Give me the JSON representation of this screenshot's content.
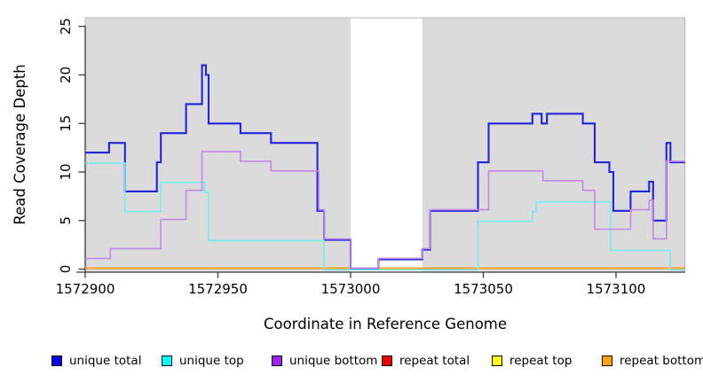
{
  "chart_data": {
    "type": "line",
    "subtype": "step-coverage",
    "title": "",
    "xlabel": "Coordinate in Reference Genome",
    "ylabel": "Read Coverage Depth",
    "xlim": [
      1572900,
      1573126
    ],
    "ylim": [
      0,
      26
    ],
    "grid": false,
    "x_ticks": [
      1572900,
      1572950,
      1573000,
      1573050,
      1573100
    ],
    "y_ticks": [
      0,
      5,
      10,
      15,
      20,
      25
    ],
    "plot_bg_color": "#dbdbdb",
    "gap_region": {
      "from": 1573000,
      "to": 1573027,
      "color": "#ffffff"
    },
    "series": [
      {
        "name": "repeat top",
        "color": "#ffff33",
        "width": 1.6,
        "dy": -1,
        "steps": [
          [
            1572900,
            0
          ]
        ]
      },
      {
        "name": "repeat total",
        "color": "#dd2222",
        "width": 1.6,
        "dy": -1,
        "steps": [
          [
            1572900,
            0
          ]
        ]
      },
      {
        "name": "repeat bottom",
        "color": "#ffa51e",
        "width": 1.8,
        "dy": -1,
        "steps": [
          [
            1572900,
            0
          ]
        ]
      },
      {
        "name": "unique total",
        "color": "#2323dc",
        "width": 2.1,
        "dy": 0,
        "steps": [
          [
            1572900,
            12
          ],
          [
            1572909,
            13
          ],
          [
            1572915,
            8
          ],
          [
            1572927,
            11
          ],
          [
            1572928.5,
            14
          ],
          [
            1572938,
            17
          ],
          [
            1572944,
            21
          ],
          [
            1572945.5,
            20
          ],
          [
            1572946.5,
            15
          ],
          [
            1572958.5,
            14
          ],
          [
            1572970,
            13
          ],
          [
            1572987.5,
            6
          ],
          [
            1572990,
            3
          ],
          [
            1573000,
            0
          ],
          [
            1573010.5,
            1
          ],
          [
            1573027,
            2
          ],
          [
            1573030,
            6
          ],
          [
            1573048,
            11
          ],
          [
            1573052,
            15
          ],
          [
            1573068.5,
            16
          ],
          [
            1573072,
            15
          ],
          [
            1573074,
            16
          ],
          [
            1573087.5,
            15
          ],
          [
            1573092,
            11
          ],
          [
            1573097.5,
            10
          ],
          [
            1573099,
            6
          ],
          [
            1573105.5,
            8
          ],
          [
            1573112.5,
            9
          ],
          [
            1573114,
            5
          ],
          [
            1573119,
            13
          ],
          [
            1573120.5,
            11
          ]
        ]
      },
      {
        "name": "unique top",
        "color": "#76ecec",
        "width": 1.6,
        "dy": 0.8,
        "steps": [
          [
            1572900,
            11
          ],
          [
            1572915,
            6
          ],
          [
            1572928.5,
            9
          ],
          [
            1572945,
            8
          ],
          [
            1572946.5,
            3
          ],
          [
            1572990,
            0
          ],
          [
            1573048,
            5
          ],
          [
            1573068.5,
            6
          ],
          [
            1573070,
            7
          ],
          [
            1573098,
            2
          ],
          [
            1573120.5,
            0
          ]
        ]
      },
      {
        "name": "unique bottom",
        "color": "#c288e8",
        "width": 1.6,
        "dy": -1.2,
        "steps": [
          [
            1572900,
            1
          ],
          [
            1572909.5,
            2
          ],
          [
            1572928.5,
            5
          ],
          [
            1572938,
            8
          ],
          [
            1572944,
            12
          ],
          [
            1572958.5,
            11
          ],
          [
            1572970,
            10
          ],
          [
            1572988,
            6
          ],
          [
            1572990,
            3
          ],
          [
            1573000,
            0
          ],
          [
            1573010.5,
            1
          ],
          [
            1573027,
            2
          ],
          [
            1573030,
            6
          ],
          [
            1573052,
            10
          ],
          [
            1573072.5,
            9
          ],
          [
            1573087.5,
            8
          ],
          [
            1573092,
            4
          ],
          [
            1573105.5,
            6
          ],
          [
            1573112.5,
            7
          ],
          [
            1573114,
            3
          ],
          [
            1573119,
            11
          ]
        ]
      }
    ]
  },
  "legend": {
    "items": [
      {
        "label": "unique total",
        "color": "#0000ee"
      },
      {
        "label": "unique top",
        "color": "#00ffff"
      },
      {
        "label": "unique bottom",
        "color": "#a020f0"
      },
      {
        "label": "repeat total",
        "color": "#ee0000"
      },
      {
        "label": "repeat top",
        "color": "#ffff00"
      },
      {
        "label": "repeat bottom",
        "color": "#ffa500"
      }
    ]
  }
}
